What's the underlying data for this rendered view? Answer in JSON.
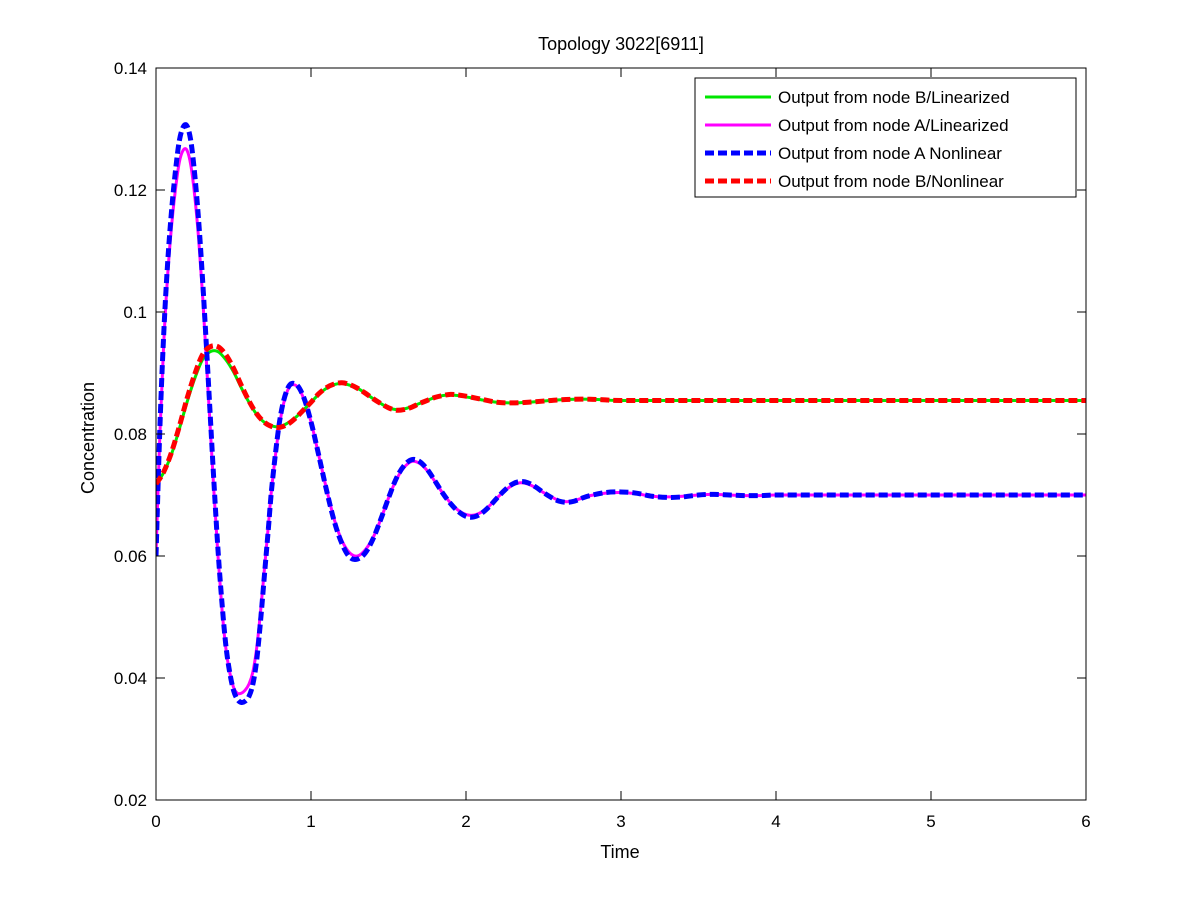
{
  "chart_data": {
    "type": "line",
    "title": "Topology 3022[6911]",
    "xlabel": "Time",
    "ylabel": "Concentration",
    "xlim": [
      0,
      6
    ],
    "ylim": [
      0.02,
      0.14
    ],
    "xticks": [
      "0",
      "1",
      "2",
      "3",
      "4",
      "5",
      "6"
    ],
    "yticks": [
      "0.02",
      "0.04",
      "0.06",
      "0.08",
      "0.1",
      "0.12",
      "0.14"
    ],
    "grid": false,
    "legend_position": "top-right",
    "series": [
      {
        "name": "Output from node B/Linearized",
        "color": "#00e600",
        "style": "solid",
        "x": [
          0,
          0.05,
          0.1,
          0.15,
          0.2,
          0.25,
          0.3,
          0.35,
          0.4,
          0.45,
          0.5,
          0.55,
          0.6,
          0.65,
          0.7,
          0.75,
          0.8,
          0.85,
          0.9,
          0.95,
          1.0,
          1.05,
          1.1,
          1.15,
          1.2,
          1.25,
          1.3,
          1.35,
          1.4,
          1.45,
          1.5,
          1.55,
          1.6,
          1.65,
          1.7,
          1.75,
          1.8,
          1.85,
          1.9,
          1.95,
          2.0,
          2.1,
          2.2,
          2.3,
          2.4,
          2.5,
          2.6,
          2.7,
          2.8,
          2.9,
          3.0,
          3.5,
          4.0,
          4.5,
          5.0,
          5.5,
          6.0
        ],
        "y": [
          0.0718,
          0.0737,
          0.0767,
          0.0808,
          0.0852,
          0.0891,
          0.0922,
          0.0935,
          0.0935,
          0.0922,
          0.0902,
          0.0876,
          0.0852,
          0.0832,
          0.0819,
          0.0813,
          0.0812,
          0.0818,
          0.0827,
          0.0839,
          0.0852,
          0.0865,
          0.0875,
          0.0881,
          0.0883,
          0.088,
          0.0875,
          0.0867,
          0.0858,
          0.085,
          0.0843,
          0.084,
          0.0841,
          0.0845,
          0.085,
          0.0855,
          0.086,
          0.0863,
          0.0864,
          0.0863,
          0.0861,
          0.0856,
          0.0852,
          0.0851,
          0.0852,
          0.0854,
          0.0856,
          0.0857,
          0.0857,
          0.0856,
          0.0855,
          0.0855,
          0.0855,
          0.0855,
          0.0855,
          0.0855,
          0.0855
        ]
      },
      {
        "name": "Output from node A/Linearized",
        "color": "#ff00ff",
        "style": "solid",
        "x": [
          0,
          0.025,
          0.05,
          0.075,
          0.1,
          0.125,
          0.15,
          0.175,
          0.2,
          0.225,
          0.25,
          0.275,
          0.3,
          0.325,
          0.35,
          0.375,
          0.4,
          0.425,
          0.45,
          0.475,
          0.5,
          0.525,
          0.55,
          0.575,
          0.6,
          0.625,
          0.65,
          0.675,
          0.7,
          0.725,
          0.75,
          0.8,
          0.85,
          0.9,
          0.95,
          1.0,
          1.05,
          1.1,
          1.15,
          1.2,
          1.25,
          1.3,
          1.35,
          1.4,
          1.45,
          1.5,
          1.55,
          1.6,
          1.65,
          1.7,
          1.75,
          1.8,
          1.85,
          1.9,
          1.95,
          2.0,
          2.05,
          2.1,
          2.15,
          2.2,
          2.25,
          2.3,
          2.35,
          2.4,
          2.45,
          2.5,
          2.55,
          2.6,
          2.65,
          2.7,
          2.75,
          2.8,
          2.9,
          3.0,
          3.1,
          3.2,
          3.3,
          3.4,
          3.5,
          3.6,
          3.7,
          3.8,
          3.9,
          4.0,
          4.2,
          4.4,
          4.6,
          5.0,
          5.5,
          6.0
        ],
        "y": [
          0.06,
          0.08,
          0.095,
          0.106,
          0.114,
          0.12,
          0.1245,
          0.1265,
          0.1265,
          0.124,
          0.119,
          0.112,
          0.103,
          0.092,
          0.081,
          0.07,
          0.06,
          0.0515,
          0.045,
          0.041,
          0.0385,
          0.0375,
          0.0375,
          0.038,
          0.039,
          0.041,
          0.045,
          0.051,
          0.058,
          0.065,
          0.072,
          0.082,
          0.0872,
          0.088,
          0.086,
          0.082,
          0.0765,
          0.071,
          0.066,
          0.0625,
          0.0605,
          0.06,
          0.061,
          0.063,
          0.066,
          0.0695,
          0.0725,
          0.0745,
          0.0755,
          0.0752,
          0.074,
          0.0722,
          0.0703,
          0.0687,
          0.0675,
          0.0668,
          0.0667,
          0.0672,
          0.0682,
          0.0695,
          0.0707,
          0.0716,
          0.072,
          0.0718,
          0.0712,
          0.0704,
          0.0697,
          0.0691,
          0.0689,
          0.0691,
          0.0695,
          0.0699,
          0.0703,
          0.0704,
          0.0702,
          0.0698,
          0.0697,
          0.0698,
          0.07,
          0.0701,
          0.07,
          0.0699,
          0.0699,
          0.07,
          0.07,
          0.07,
          0.07,
          0.07,
          0.07,
          0.07
        ]
      },
      {
        "name": "Output from node A  Nonlinear",
        "color": "#0000ff",
        "style": "dashed",
        "x": [
          0,
          0.025,
          0.05,
          0.075,
          0.1,
          0.125,
          0.15,
          0.175,
          0.2,
          0.225,
          0.25,
          0.275,
          0.3,
          0.325,
          0.35,
          0.375,
          0.4,
          0.425,
          0.45,
          0.475,
          0.5,
          0.525,
          0.55,
          0.575,
          0.6,
          0.625,
          0.65,
          0.675,
          0.7,
          0.725,
          0.75,
          0.8,
          0.85,
          0.9,
          0.95,
          1.0,
          1.05,
          1.1,
          1.15,
          1.2,
          1.25,
          1.3,
          1.35,
          1.4,
          1.45,
          1.5,
          1.55,
          1.6,
          1.65,
          1.7,
          1.75,
          1.8,
          1.85,
          1.9,
          1.95,
          2.0,
          2.05,
          2.1,
          2.15,
          2.2,
          2.25,
          2.3,
          2.35,
          2.4,
          2.45,
          2.5,
          2.55,
          2.6,
          2.65,
          2.7,
          2.75,
          2.8,
          2.9,
          3.0,
          3.1,
          3.2,
          3.3,
          3.4,
          3.5,
          3.6,
          3.7,
          3.8,
          3.9,
          4.0,
          4.2,
          4.4,
          4.6,
          5.0,
          5.5,
          6.0
        ],
        "y": [
          0.06,
          0.081,
          0.0965,
          0.108,
          0.1165,
          0.123,
          0.128,
          0.1303,
          0.1305,
          0.128,
          0.1225,
          0.115,
          0.1055,
          0.0945,
          0.083,
          0.0715,
          0.061,
          0.0525,
          0.0455,
          0.041,
          0.038,
          0.0365,
          0.036,
          0.0362,
          0.037,
          0.039,
          0.043,
          0.0495,
          0.057,
          0.0645,
          0.072,
          0.0825,
          0.0875,
          0.0882,
          0.0862,
          0.082,
          0.0765,
          0.0708,
          0.0657,
          0.062,
          0.0598,
          0.0595,
          0.0605,
          0.0628,
          0.066,
          0.0695,
          0.0727,
          0.0748,
          0.0758,
          0.0755,
          0.0742,
          0.0723,
          0.0703,
          0.0686,
          0.0673,
          0.0665,
          0.0664,
          0.067,
          0.0681,
          0.0695,
          0.0708,
          0.0718,
          0.0722,
          0.072,
          0.0713,
          0.0704,
          0.0696,
          0.069,
          0.0688,
          0.069,
          0.0695,
          0.0699,
          0.0704,
          0.0705,
          0.0703,
          0.0698,
          0.0696,
          0.0697,
          0.07,
          0.0701,
          0.07,
          0.0699,
          0.0699,
          0.07,
          0.07,
          0.07,
          0.07,
          0.07,
          0.07,
          0.07
        ]
      },
      {
        "name": "Output from node B/Nonlinear",
        "color": "#ff0000",
        "style": "dashed",
        "x": [
          0,
          0.05,
          0.1,
          0.15,
          0.2,
          0.25,
          0.3,
          0.35,
          0.4,
          0.45,
          0.5,
          0.55,
          0.6,
          0.65,
          0.7,
          0.75,
          0.8,
          0.85,
          0.9,
          0.95,
          1.0,
          1.05,
          1.1,
          1.15,
          1.2,
          1.25,
          1.3,
          1.35,
          1.4,
          1.45,
          1.5,
          1.55,
          1.6,
          1.65,
          1.7,
          1.75,
          1.8,
          1.85,
          1.9,
          1.95,
          2.0,
          2.1,
          2.2,
          2.3,
          2.4,
          2.5,
          2.6,
          2.7,
          2.8,
          2.9,
          3.0,
          3.5,
          4.0,
          4.5,
          5.0,
          5.5,
          6.0
        ],
        "y": [
          0.0718,
          0.0738,
          0.077,
          0.0812,
          0.0858,
          0.0898,
          0.093,
          0.0943,
          0.0943,
          0.093,
          0.0908,
          0.088,
          0.0854,
          0.0833,
          0.0819,
          0.0812,
          0.0811,
          0.0816,
          0.0826,
          0.0839,
          0.0852,
          0.0866,
          0.0876,
          0.0882,
          0.0884,
          0.0881,
          0.0875,
          0.0867,
          0.0858,
          0.085,
          0.0843,
          0.0839,
          0.084,
          0.0844,
          0.085,
          0.0855,
          0.086,
          0.0863,
          0.0865,
          0.0864,
          0.0862,
          0.0857,
          0.0852,
          0.0851,
          0.0852,
          0.0854,
          0.0856,
          0.0857,
          0.0857,
          0.0856,
          0.0855,
          0.0855,
          0.0855,
          0.0855,
          0.0855,
          0.0855,
          0.0855
        ]
      }
    ]
  }
}
